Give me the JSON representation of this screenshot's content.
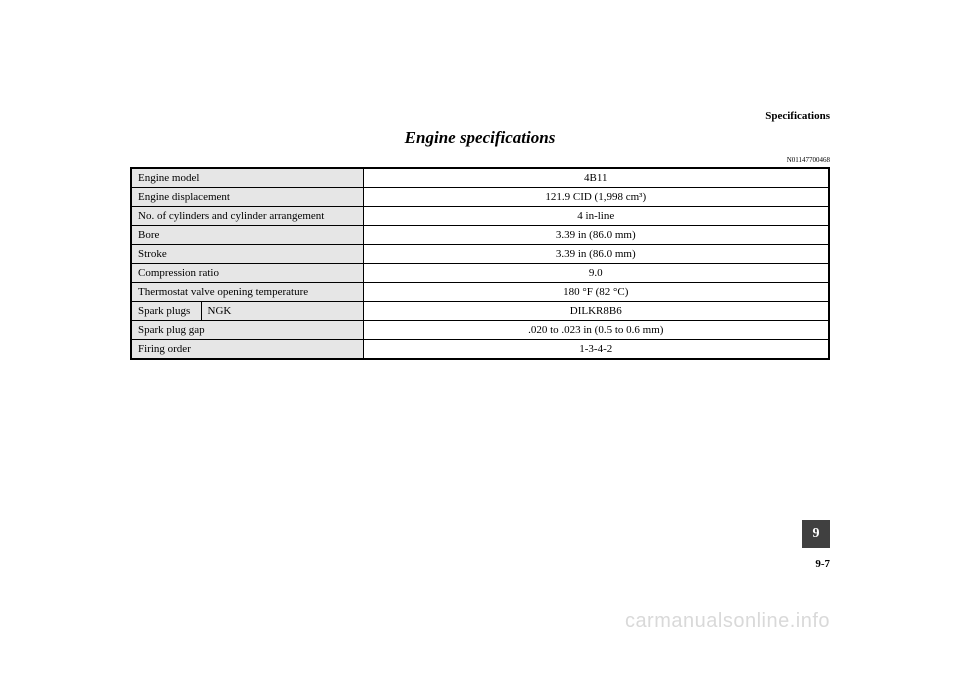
{
  "section_header": "Specifications",
  "page_title": "Engine specifications",
  "ref_code": "N01147700468",
  "table": {
    "rows": [
      {
        "label": "Engine model",
        "value": "4B11"
      },
      {
        "label": "Engine displacement",
        "value": "121.9 CID (1,998 cm³)"
      },
      {
        "label": "No. of cylinders and cylinder arrangement",
        "value": "4 in-line"
      },
      {
        "label": "Bore",
        "value": "3.39 in (86.0 mm)"
      },
      {
        "label": "Stroke",
        "value": "3.39 in (86.0 mm)"
      },
      {
        "label": "Compression ratio",
        "value": "9.0"
      },
      {
        "label": "Thermostat valve opening temperature",
        "value": "180 °F (82 °C)"
      }
    ],
    "spark_plugs_row": {
      "label1": "Spark plugs",
      "label2": "NGK",
      "value": "DILKR8B6"
    },
    "rows_after": [
      {
        "label": "Spark plug gap",
        "value": ".020 to .023 in (0.5 to 0.6 mm)"
      },
      {
        "label": "Firing order",
        "value": "1-3-4-2"
      }
    ]
  },
  "page_tab": "9",
  "page_number": "9-7",
  "watermark": "carmanualsonline.info",
  "colors": {
    "label_bg": "#e6e6e6",
    "tab_bg": "#404040",
    "watermark": "#d9d9d9"
  }
}
